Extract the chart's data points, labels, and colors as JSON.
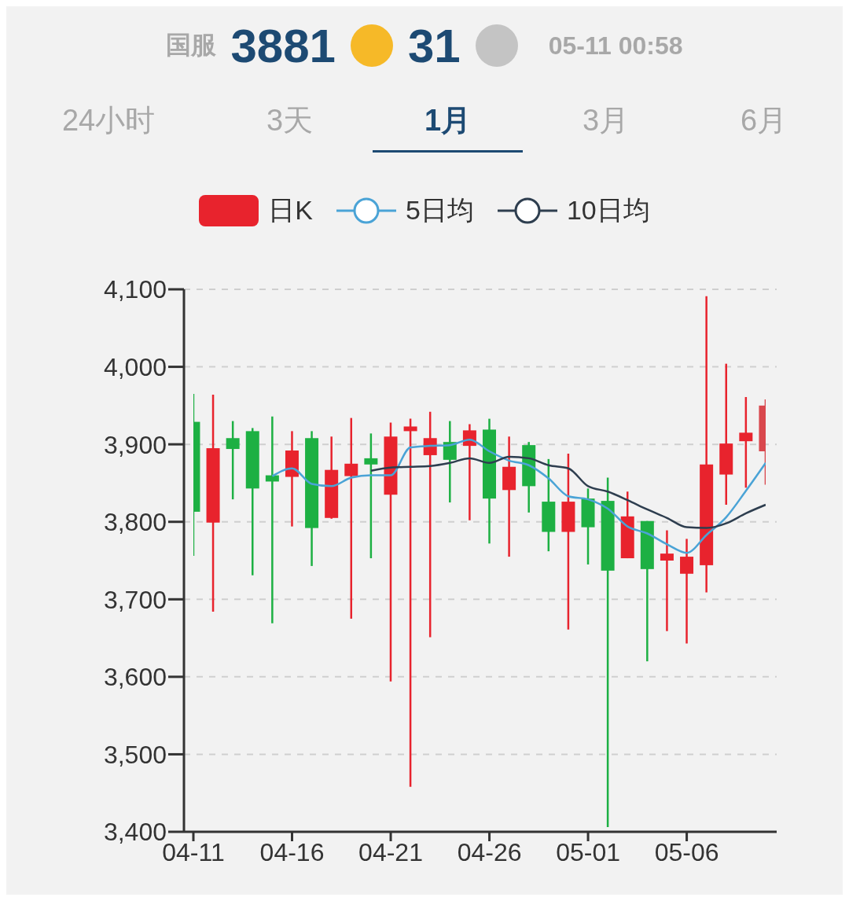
{
  "chart_data": {
    "type": "candlestick",
    "title": "国服",
    "annotations": [
      "3881",
      "31",
      "05-11 00:58",
      "24小时",
      "3天",
      "1月",
      "3月",
      "6月"
    ],
    "categories": [
      "04-11",
      null,
      null,
      null,
      null,
      "04-16",
      null,
      null,
      null,
      null,
      "04-21",
      null,
      null,
      null,
      null,
      "04-26",
      null,
      null,
      null,
      null,
      "05-01",
      null,
      null,
      null,
      null,
      "05-06",
      null,
      null,
      null,
      null
    ],
    "series": [
      {
        "name": "日K",
        "color": "#e8232d",
        "colors": [
          "#1db043",
          "#e8232d",
          "#1db043",
          "#1db043",
          "#1db043",
          "#e8232d",
          "#1db043",
          "#e8232d",
          "#e8232d",
          "#1db043",
          "#e8232d",
          "#e8232d",
          "#e8232d",
          "#1db043",
          "#e8232d",
          "#1db043",
          "#e8232d",
          "#1db043",
          "#1db043",
          "#e8232d",
          "#1db043",
          "#1db043",
          "#e8232d",
          "#1db043",
          "#e8232d",
          "#e8232d",
          "#e8232d",
          "#e8232d",
          "#e8232d",
          "#d9474d"
        ],
        "ohlc": [
          [
            3929,
            3965,
            3756,
            3813
          ],
          [
            3799,
            3964,
            3684,
            3895
          ],
          [
            3908,
            3930,
            3829,
            3894
          ],
          [
            3917,
            3921,
            3731,
            3843
          ],
          [
            3860,
            3936,
            3669,
            3852
          ],
          [
            3858,
            3917,
            3794,
            3892
          ],
          [
            3908,
            3917,
            3743,
            3792
          ],
          [
            3805,
            3910,
            3804,
            3867
          ],
          [
            3859,
            3934,
            3675,
            3875
          ],
          [
            3882,
            3914,
            3753,
            3874
          ],
          [
            3835,
            3928,
            3594,
            3910
          ],
          [
            3917,
            3933,
            3458,
            3923
          ],
          [
            3886,
            3942,
            3651,
            3908
          ],
          [
            3903,
            3930,
            3825,
            3880
          ],
          [
            3898,
            3926,
            3802,
            3918
          ],
          [
            3919,
            3933,
            3772,
            3830
          ],
          [
            3841,
            3910,
            3755,
            3871
          ],
          [
            3899,
            3903,
            3812,
            3846
          ],
          [
            3826,
            3881,
            3762,
            3787
          ],
          [
            3787,
            3888,
            3661,
            3826
          ],
          [
            3830,
            3843,
            3745,
            3793
          ],
          [
            3827,
            3857,
            3406,
            3737
          ],
          [
            3753,
            3839,
            3753,
            3807
          ],
          [
            3801,
            3801,
            3620,
            3739
          ],
          [
            3750,
            3789,
            3659,
            3759
          ],
          [
            3733,
            3778,
            3643,
            3755
          ],
          [
            3744,
            4091,
            3709,
            3874
          ],
          [
            3861,
            4004,
            3822,
            3901
          ],
          [
            3904,
            3961,
            3844,
            3915
          ],
          [
            3891,
            3958,
            3848,
            3950
          ]
        ]
      },
      {
        "name": "5日均",
        "type": "line",
        "color": "#4aa3d6",
        "values": [
          null,
          null,
          null,
          null,
          3859,
          3869,
          3849,
          3846,
          3857,
          3860,
          3860,
          3896,
          3898,
          3899,
          3906,
          3891,
          3879,
          3873,
          3856,
          3833,
          3829,
          3817,
          3794,
          3785,
          3771,
          3760,
          3783,
          3806,
          3840,
          3876
        ]
      },
      {
        "name": "10日均",
        "type": "line",
        "color": "#2e3e4f",
        "values": [
          null,
          null,
          null,
          null,
          null,
          null,
          null,
          null,
          null,
          3866,
          3870,
          3871,
          3872,
          3876,
          3882,
          3876,
          3884,
          3882,
          3873,
          3869,
          3846,
          3839,
          3828,
          3816,
          3805,
          3793,
          3792,
          3798,
          3811,
          3822
        ]
      }
    ],
    "ylim": [
      3400,
      4100
    ],
    "yticks": [
      {
        "value": 3400,
        "label": "3,400"
      },
      {
        "value": 3500,
        "label": "3,500"
      },
      {
        "value": 3600,
        "label": "3,600"
      },
      {
        "value": 3700,
        "label": "3,700"
      },
      {
        "value": 3800,
        "label": "3,800"
      },
      {
        "value": 3900,
        "label": "3,900"
      },
      {
        "value": 4000,
        "label": "4,000"
      },
      {
        "value": 4100,
        "label": "4,100"
      }
    ],
    "grid": "y",
    "legend": "top",
    "marker": "none",
    "line_style": "solid"
  }
}
